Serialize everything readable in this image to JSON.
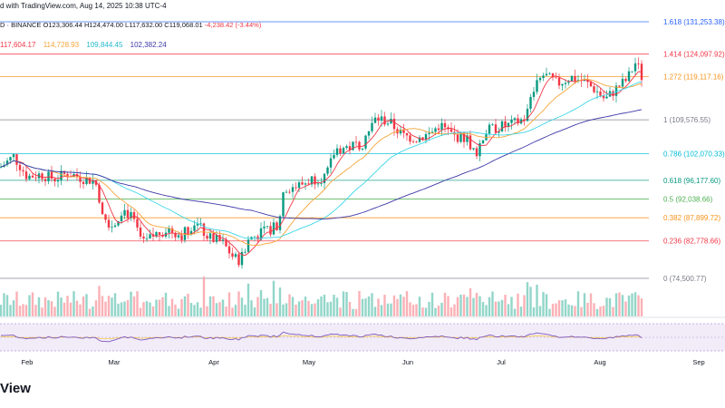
{
  "header": {
    "published": "d with TradingView.com, Aug 14, 2025 10:38 UTC-4",
    "ohlc_prefix": "D · BINANCE",
    "open": "O123,306.44",
    "high": "H124,474.00",
    "low": "L117,632.00",
    "close": "C119,068.01",
    "change": "-4,238.42 (-3.44%)"
  },
  "moving_averages": [
    {
      "value": "117,604.17",
      "color": "#f23645"
    },
    {
      "value": "114,728.93",
      "color": "#f7a53a"
    },
    {
      "value": "109,844.45",
      "color": "#3dd6e8"
    },
    {
      "value": "102,382.24",
      "color": "#3e3aa8"
    }
  ],
  "footer": {
    "logo": "View"
  },
  "chart_data": {
    "type": "candlestick",
    "price_range": [
      74000,
      133000
    ],
    "x_labels": [
      "Feb",
      "Mar",
      "Apr",
      "May",
      "Jun",
      "Jul",
      "Aug",
      "Sep"
    ],
    "fib_levels": [
      {
        "label": "1.618 (131,253.38)",
        "price": 131253.38,
        "color": "#2962ff"
      },
      {
        "label": "1.414 (124,097.92)",
        "price": 124097.92,
        "color": "#f23645"
      },
      {
        "label": "1.272 (119,117.16)",
        "price": 119117.16,
        "color": "#f7931a"
      },
      {
        "label": "1 (109,576.55)",
        "price": 109576.55,
        "color": "#787b86"
      },
      {
        "label": "0.786 (102,070.33)",
        "price": 102070.33,
        "color": "#00bcd4"
      },
      {
        "label": "0.618 (96,177.60)",
        "price": 96177.6,
        "color": "#089981"
      },
      {
        "label": "0.5 (92,038.66)",
        "price": 92038.66,
        "color": "#4caf50"
      },
      {
        "label": "0.382 (87,899.72)",
        "price": 87899.72,
        "color": "#f7931a"
      },
      {
        "label": "0.236 (82,778.66)",
        "price": 82778.66,
        "color": "#f23645"
      },
      {
        "label": "0 (74,500.77)",
        "price": 74500.77,
        "color": "#787b86"
      }
    ],
    "close_path": [
      {
        "x": 0,
        "p": 99000
      },
      {
        "x": 15,
        "p": 101500
      },
      {
        "x": 30,
        "p": 97000
      },
      {
        "x": 45,
        "p": 97500
      },
      {
        "x": 60,
        "p": 96500
      },
      {
        "x": 75,
        "p": 97800
      },
      {
        "x": 90,
        "p": 96700
      },
      {
        "x": 105,
        "p": 96000
      },
      {
        "x": 115,
        "p": 88000
      },
      {
        "x": 125,
        "p": 86000
      },
      {
        "x": 135,
        "p": 90000
      },
      {
        "x": 145,
        "p": 88000
      },
      {
        "x": 158,
        "p": 82000
      },
      {
        "x": 170,
        "p": 84000
      },
      {
        "x": 185,
        "p": 85500
      },
      {
        "x": 200,
        "p": 84000
      },
      {
        "x": 215,
        "p": 87000
      },
      {
        "x": 230,
        "p": 83500
      },
      {
        "x": 245,
        "p": 82500
      },
      {
        "x": 258,
        "p": 79000
      },
      {
        "x": 265,
        "p": 78500
      },
      {
        "x": 275,
        "p": 83500
      },
      {
        "x": 290,
        "p": 84500
      },
      {
        "x": 305,
        "p": 86000
      },
      {
        "x": 315,
        "p": 94500
      },
      {
        "x": 330,
        "p": 95000
      },
      {
        "x": 345,
        "p": 96500
      },
      {
        "x": 360,
        "p": 97000
      },
      {
        "x": 370,
        "p": 103000
      },
      {
        "x": 385,
        "p": 103500
      },
      {
        "x": 400,
        "p": 104500
      },
      {
        "x": 415,
        "p": 110000
      },
      {
        "x": 430,
        "p": 109000
      },
      {
        "x": 445,
        "p": 106000
      },
      {
        "x": 460,
        "p": 105500
      },
      {
        "x": 475,
        "p": 106500
      },
      {
        "x": 485,
        "p": 108500
      },
      {
        "x": 500,
        "p": 106000
      },
      {
        "x": 515,
        "p": 105500
      },
      {
        "x": 525,
        "p": 102000
      },
      {
        "x": 535,
        "p": 107000
      },
      {
        "x": 550,
        "p": 108000
      },
      {
        "x": 565,
        "p": 108500
      },
      {
        "x": 580,
        "p": 110000
      },
      {
        "x": 590,
        "p": 117000
      },
      {
        "x": 600,
        "p": 119500
      },
      {
        "x": 615,
        "p": 117500
      },
      {
        "x": 630,
        "p": 119000
      },
      {
        "x": 645,
        "p": 118000
      },
      {
        "x": 658,
        "p": 116000
      },
      {
        "x": 668,
        "p": 114000
      },
      {
        "x": 680,
        "p": 116500
      },
      {
        "x": 692,
        "p": 118500
      },
      {
        "x": 702,
        "p": 122500
      },
      {
        "x": 708,
        "p": 119068
      }
    ]
  }
}
